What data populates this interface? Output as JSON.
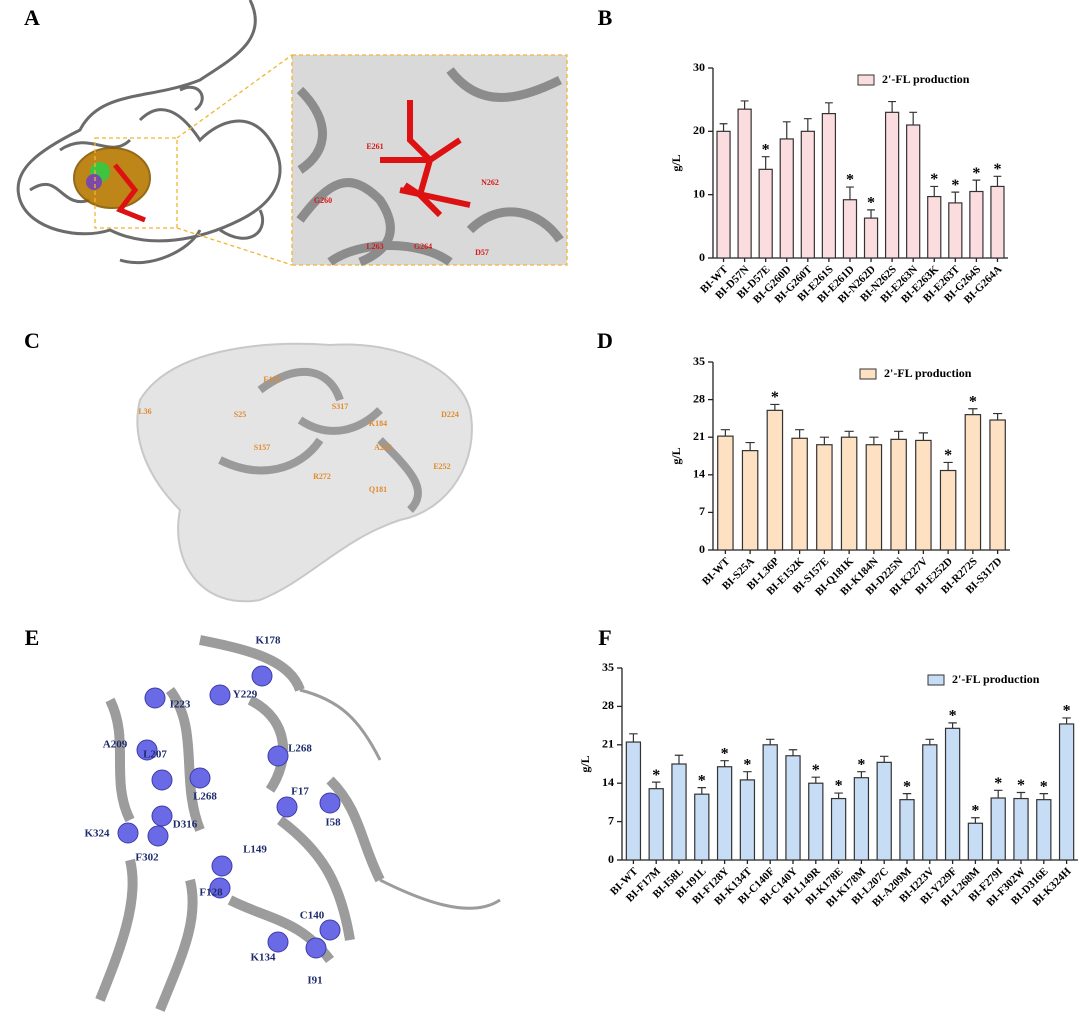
{
  "panel_letters": [
    "A",
    "B",
    "C",
    "D",
    "E",
    "F"
  ],
  "structures": [
    {
      "labels": [
        "E261",
        "G260",
        "N262",
        "L263",
        "G264",
        "D57"
      ]
    },
    {
      "labels": [
        "L36",
        "E152",
        "S25",
        "S317",
        "D224",
        "K184",
        "S157",
        "A225",
        "R272",
        "Q181",
        "E252"
      ]
    },
    {
      "labels": [
        "K178",
        "I223",
        "Y229",
        "L268",
        "A209",
        "L207",
        "L268",
        "F17",
        "I58",
        "K324",
        "D316",
        "F302",
        "L149",
        "F128",
        "C140",
        "K134",
        "I91"
      ]
    }
  ],
  "chart_data": [
    {
      "type": "bar",
      "y_label": "g/L",
      "legend": "upper right",
      "color": "#fbdde0",
      "series_name": "2'-FL production",
      "categories": [
        "BI-WT",
        "BI-D57N",
        "BI-D57E",
        "BI-G260D",
        "BI-G260T",
        "BI-E261S",
        "BI-E261D",
        "BI-N262D",
        "BI-N262S",
        "BI-E263N",
        "BI-E263K",
        "BI-E263T",
        "BI-G264S",
        "BI-G264A"
      ],
      "values": [
        20,
        23.5,
        14,
        18.8,
        20,
        22.8,
        9.2,
        6.3,
        23,
        21,
        9.7,
        8.7,
        10.5,
        11.3
      ],
      "errors": [
        1.2,
        1.3,
        2,
        2.7,
        2,
        1.7,
        2,
        1.3,
        1.7,
        2,
        1.6,
        1.7,
        1.8,
        1.6
      ],
      "markers": [
        null,
        null,
        "*",
        null,
        null,
        null,
        "*",
        "*",
        null,
        null,
        "*",
        "*",
        "*",
        "*"
      ],
      "ylim": [
        0,
        30
      ],
      "yticks": [
        0,
        10,
        20,
        30
      ]
    },
    {
      "type": "bar",
      "y_label": "g/L",
      "legend": "upper right",
      "color": "#fde1c2",
      "series_name": "2'-FL production",
      "categories": [
        "BI-WT",
        "BI-S25A",
        "BI-L36P",
        "BI-E152K",
        "BI-S157E",
        "BI-Q181K",
        "BI-K184N",
        "BI-D225N",
        "BI-K227V",
        "BI-E252D",
        "BI-R272S",
        "BI-S317D"
      ],
      "values": [
        21.2,
        18.5,
        26,
        20.8,
        19.6,
        21,
        19.6,
        20.6,
        20.4,
        14.8,
        25.2,
        24.2
      ],
      "errors": [
        1.2,
        1.5,
        1.1,
        1.6,
        1.4,
        1.1,
        1.4,
        1.5,
        1.4,
        1.5,
        1.1,
        1.2
      ],
      "markers": [
        null,
        null,
        "*",
        null,
        null,
        null,
        null,
        null,
        null,
        "*",
        "*",
        null
      ],
      "ylim": [
        0,
        35
      ],
      "yticks": [
        0,
        7,
        14,
        21,
        28,
        35
      ]
    },
    {
      "type": "bar",
      "y_label": "g/L",
      "legend": "upper right",
      "color": "#c7ddf5",
      "series_name": "2'-FL production",
      "categories": [
        "BI-WT",
        "BI-F17M",
        "BI-I58L",
        "BI-I91L",
        "BI-F128Y",
        "BI-K134T",
        "BI-C140F",
        "BI-C140Y",
        "BI-L149R",
        "BI-K178E",
        "BI-K178M",
        "BI-L207C",
        "BI-A209M",
        "BI-I223V",
        "BI-Y229F",
        "BI-L268M",
        "BI-F279I",
        "BI-F302W",
        "BI-D316E",
        "BI-K324H"
      ],
      "values": [
        21.5,
        13,
        17.5,
        12,
        17,
        14.6,
        21,
        19,
        14,
        11.2,
        15,
        17.8,
        11,
        21,
        24,
        6.7,
        11.3,
        11.2,
        11,
        24.8
      ],
      "errors": [
        1.5,
        1.2,
        1.6,
        1.2,
        1.1,
        1.5,
        1,
        1.1,
        1.1,
        1,
        1.1,
        1.1,
        1.1,
        1,
        1,
        1,
        1.4,
        1.1,
        1.1,
        1.1
      ],
      "markers": [
        null,
        "*",
        null,
        "*",
        "*",
        "*",
        null,
        null,
        "*",
        "*",
        "*",
        null,
        "*",
        null,
        "*",
        "*",
        "*",
        "*",
        "*",
        "*"
      ],
      "ylim": [
        0,
        35
      ],
      "yticks": [
        0,
        7,
        14,
        21,
        28,
        35
      ]
    }
  ]
}
